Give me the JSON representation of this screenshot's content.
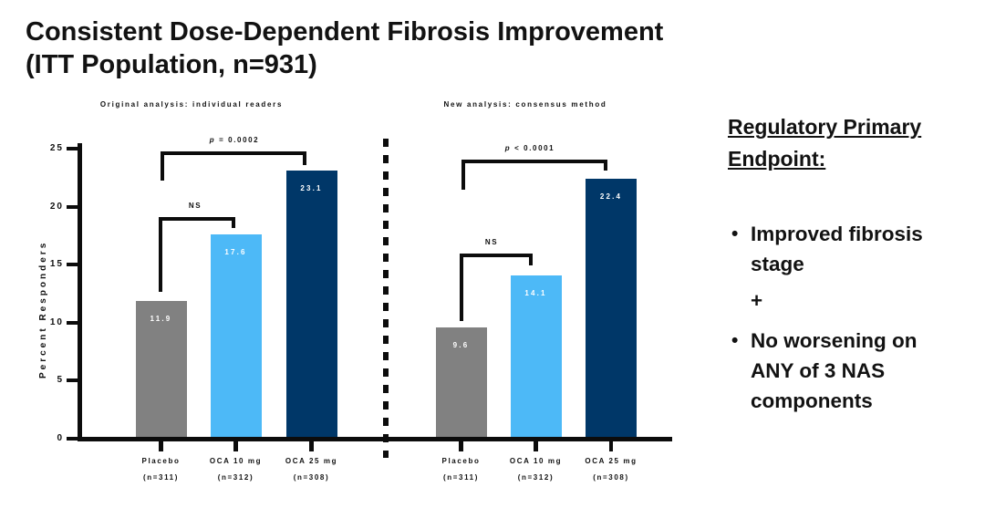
{
  "title": {
    "line1": "Consistent Dose-Dependent Fibrosis Improvement",
    "line2": "(ITT Population, n=931)"
  },
  "colors": {
    "placebo_bar": "#818181",
    "oca10_bar": "#4DB9F7",
    "oca25_bar": "#003768",
    "axis": "#0C0C0C",
    "text": "#121212",
    "bar_value_text": "#FFFFFF"
  },
  "chart_data": [
    {
      "type": "bar",
      "title": "Original analysis: individual readers",
      "categories": [
        "Placebo",
        "OCA 10 mg",
        "OCA 25 mg"
      ],
      "category_sublabels": [
        "(n=311)",
        "(n=312)",
        "(n=308)"
      ],
      "values": [
        11.9,
        17.6,
        23.1
      ],
      "bar_colors": [
        "#818181",
        "#4DB9F7",
        "#003768"
      ],
      "ylabel": "Percent Responders",
      "ylim": [
        0,
        25
      ],
      "yticks": [
        0,
        5,
        10,
        15,
        20,
        25
      ],
      "grid": false,
      "annotations": [
        {
          "label": "p = 0.0002",
          "groups": [
            "Placebo",
            "OCA 25 mg"
          ]
        },
        {
          "label": "NS",
          "groups": [
            "Placebo",
            "OCA 10 mg"
          ]
        }
      ]
    },
    {
      "type": "bar",
      "title": "New analysis: consensus method",
      "categories": [
        "Placebo",
        "OCA 10 mg",
        "OCA 25 mg"
      ],
      "category_sublabels": [
        "(n=311)",
        "(n=312)",
        "(n=308)"
      ],
      "values": [
        9.6,
        14.1,
        22.4
      ],
      "bar_colors": [
        "#818181",
        "#4DB9F7",
        "#003768"
      ],
      "ylabel": "Percent Responders",
      "ylim": [
        0,
        25
      ],
      "yticks": [
        0,
        5,
        10,
        15,
        20,
        25
      ],
      "grid": false,
      "annotations": [
        {
          "label": "p < 0.0001",
          "groups": [
            "Placebo",
            "OCA 25 mg"
          ]
        },
        {
          "label": "NS",
          "groups": [
            "Placebo",
            "OCA 10 mg"
          ]
        }
      ]
    }
  ],
  "right_panel": {
    "heading": "Regulatory Primary Endpoint:",
    "bullets": [
      "Improved fibrosis stage",
      "No worsening on ANY of 3 NAS components"
    ],
    "connector": "+"
  }
}
